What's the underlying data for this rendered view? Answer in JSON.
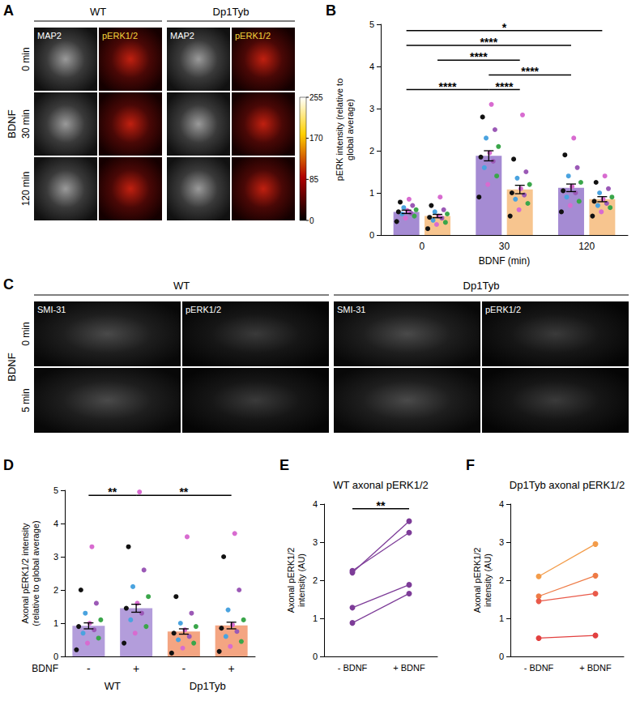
{
  "chart_data": [
    {
      "panel": "B",
      "type": "bar",
      "y_label": "pERK intensity (relative to global average)",
      "x_label": "BDNF (min)",
      "categories": [
        "0",
        "30",
        "120"
      ],
      "series": [
        {
          "color": "#a58bd3",
          "values": [
            0.55,
            1.88,
            1.12
          ],
          "error": [
            0.04,
            0.12,
            0.09
          ],
          "points": [
            [
              0.32,
              0.4,
              0.45,
              0.5,
              0.52,
              0.55,
              0.58,
              0.6,
              0.65,
              0.7,
              0.78,
              0.85
            ],
            [
              0.9,
              1.2,
              1.4,
              1.6,
              1.75,
              1.85,
              1.95,
              2.1,
              2.3,
              2.5,
              2.8,
              3.1
            ],
            [
              0.55,
              0.7,
              0.8,
              0.9,
              1.0,
              1.05,
              1.15,
              1.25,
              1.4,
              1.6,
              1.9,
              2.3
            ]
          ]
        },
        {
          "color": "#f7c58f",
          "values": [
            0.45,
            1.08,
            0.85
          ],
          "error": [
            0.04,
            0.1,
            0.06
          ],
          "points": [
            [
              0.15,
              0.25,
              0.3,
              0.35,
              0.4,
              0.42,
              0.45,
              0.5,
              0.55,
              0.6,
              0.7,
              0.9
            ],
            [
              0.45,
              0.6,
              0.75,
              0.85,
              0.95,
              1.0,
              1.1,
              1.2,
              1.35,
              1.5,
              1.8,
              2.85
            ],
            [
              0.45,
              0.55,
              0.65,
              0.7,
              0.75,
              0.8,
              0.85,
              0.9,
              1.0,
              1.1,
              1.25,
              1.4
            ]
          ]
        }
      ],
      "ylim": [
        0,
        5
      ],
      "yticks": [
        0,
        1,
        2,
        3,
        4,
        5
      ],
      "grid": false,
      "comparisons": [
        {
          "from": [
            0,
            0
          ],
          "to": [
            1,
            0
          ],
          "label": "****"
        },
        {
          "from": [
            1,
            0
          ],
          "to": [
            1,
            1
          ],
          "label": "****"
        },
        {
          "from": [
            1,
            0
          ],
          "to": [
            2,
            0
          ],
          "label": "****"
        },
        {
          "from": [
            0,
            1
          ],
          "to": [
            1,
            1
          ],
          "label": "****"
        },
        {
          "from": [
            0,
            0
          ],
          "to": [
            2,
            0
          ],
          "label": "****"
        },
        {
          "from": [
            0,
            0
          ],
          "to": [
            2,
            1
          ],
          "label": "*"
        }
      ]
    },
    {
      "panel": "D",
      "type": "bar",
      "y_label": "Axonal pERK1/2 intensity (relative to global average)",
      "x_label": "BDNF",
      "categories": [
        "-",
        "+",
        "-",
        "+"
      ],
      "groups": [
        {
          "label": "WT",
          "span": [
            0,
            1
          ]
        },
        {
          "label": "Dp1Tyb",
          "span": [
            2,
            3
          ]
        }
      ],
      "values": [
        0.92,
        1.45,
        0.75,
        0.93
      ],
      "error": [
        0.09,
        0.12,
        0.08,
        0.1
      ],
      "colors": [
        "#b39ddb",
        "#b39ddb",
        "#f4a582",
        "#f4a582"
      ],
      "points": [
        [
          0.2,
          0.4,
          0.55,
          0.7,
          0.8,
          0.9,
          1.0,
          1.1,
          1.3,
          1.6,
          2.0,
          3.3
        ],
        [
          0.4,
          0.7,
          0.9,
          1.1,
          1.3,
          1.45,
          1.6,
          1.8,
          2.1,
          2.6,
          3.3,
          4.95
        ],
        [
          0.1,
          0.25,
          0.4,
          0.5,
          0.6,
          0.7,
          0.8,
          0.9,
          1.0,
          1.3,
          1.8,
          3.6
        ],
        [
          0.15,
          0.3,
          0.45,
          0.6,
          0.75,
          0.85,
          0.95,
          1.1,
          1.4,
          2.0,
          3.0,
          3.7
        ]
      ],
      "ylim": [
        0,
        5
      ],
      "yticks": [
        0,
        1,
        2,
        3,
        4,
        5
      ],
      "grid": false,
      "comparisons": [
        {
          "from": 0,
          "to": 1,
          "label": "**"
        },
        {
          "from": 1,
          "to": 3,
          "label": "**"
        }
      ]
    },
    {
      "panel": "E",
      "type": "line",
      "title": "WT axonal pERK1/2",
      "y_label": "Axonal pERK1/2 intensity (AU)",
      "categories": [
        "- BDNF",
        "+ BDNF"
      ],
      "marker": "circle",
      "series": [
        {
          "color": "#7d3c98",
          "values": [
            2.2,
            3.55
          ]
        },
        {
          "color": "#7d3c98",
          "values": [
            2.25,
            3.25
          ]
        },
        {
          "color": "#7d3c98",
          "values": [
            1.28,
            1.88
          ]
        },
        {
          "color": "#7d3c98",
          "values": [
            0.88,
            1.65
          ]
        }
      ],
      "ylim": [
        0,
        4
      ],
      "yticks": [
        0,
        1,
        2,
        3,
        4
      ],
      "grid": false,
      "comparisons": [
        {
          "from": 0,
          "to": 1,
          "label": "**"
        }
      ]
    },
    {
      "panel": "F",
      "type": "line",
      "title": "Dp1Tyb axonal pERK1/2",
      "y_label": "Axonal pERK1/2 intensity (AU)",
      "categories": [
        "- BDNF",
        "+ BDNF"
      ],
      "marker": "circle",
      "series": [
        {
          "color": "#f39c4a",
          "values": [
            2.1,
            2.95
          ]
        },
        {
          "color": "#ee7a45",
          "values": [
            1.58,
            2.12
          ]
        },
        {
          "color": "#e95a4a",
          "values": [
            1.45,
            1.65
          ]
        },
        {
          "color": "#e2403f",
          "values": [
            0.48,
            0.55
          ]
        }
      ],
      "ylim": [
        0,
        4
      ],
      "yticks": [
        0,
        1,
        2,
        3,
        4
      ],
      "grid": false
    }
  ],
  "images": [
    {
      "panel": "A",
      "groups": [
        "WT",
        "Dp1Tyb"
      ],
      "channels": [
        "MAP2",
        "pERK1/2"
      ],
      "row_title": "BDNF",
      "rows": [
        "0 min",
        "30 min",
        "120 min"
      ],
      "colorbar": {
        "range": [
          0,
          255
        ],
        "ticks": [
          0,
          85,
          170,
          255
        ]
      }
    },
    {
      "panel": "C",
      "groups": [
        "WT",
        "Dp1Tyb"
      ],
      "channels": [
        "SMI-31",
        "pERK1/2"
      ],
      "row_title": "BDNF",
      "rows": [
        "0 min",
        "5 min"
      ]
    }
  ]
}
